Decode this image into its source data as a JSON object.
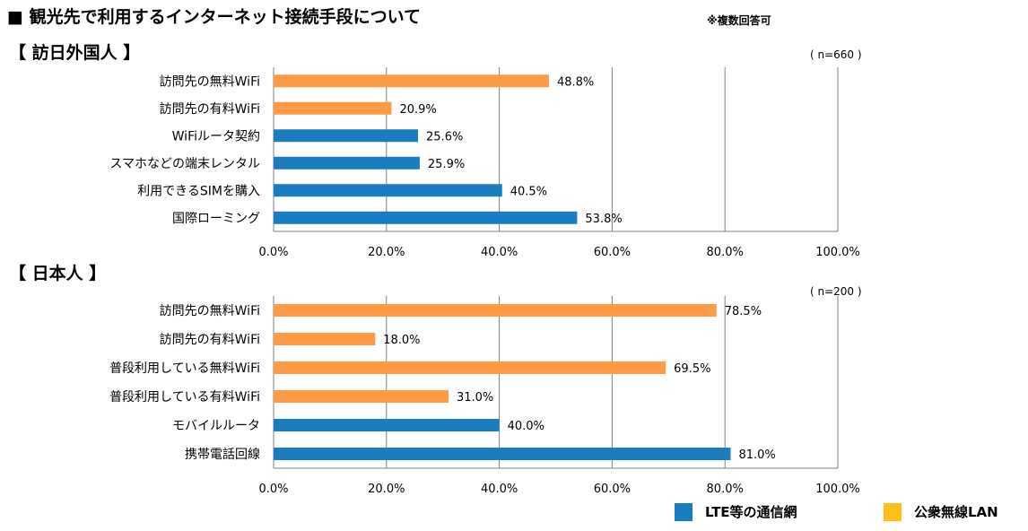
{
  "page": {
    "title": "■ 観光先で利用するインターネット接続手段について",
    "note": "※複数回答可"
  },
  "colors": {
    "lte": "#1a7dc0",
    "wifi": "#ff9a45",
    "legend_wifi": "#ffbf1a",
    "grid": "#7f7f7f",
    "axis": "#7f7f7f"
  },
  "legend": [
    {
      "label": "LTE等の通信網",
      "color": "#1a7dc0"
    },
    {
      "label": "公衆無線LAN",
      "color": "#ffbf1a"
    }
  ],
  "chart_data": [
    {
      "type": "bar",
      "orientation": "horizontal",
      "title": "【 訪日外国人 】",
      "sample": "( n=660 )",
      "xlim": [
        0,
        100
      ],
      "tick_labels": [
        "0.0%",
        "20.0%",
        "40.0%",
        "60.0%",
        "80.0%",
        "100.0%"
      ],
      "categories": [
        "訪問先の無料WiFi",
        "訪問先の有料WiFi",
        "WiFiルータ契約",
        "スマホなどの端末レンタル",
        "利用できるSIMを購入",
        "国際ローミング"
      ],
      "values": [
        48.8,
        20.9,
        25.6,
        25.9,
        40.5,
        53.8
      ],
      "value_labels": [
        "48.8%",
        "20.9%",
        "25.6%",
        "25.9%",
        "40.5%",
        "53.8%"
      ],
      "group": [
        "wifi",
        "wifi",
        "lte",
        "lte",
        "lte",
        "lte"
      ]
    },
    {
      "type": "bar",
      "orientation": "horizontal",
      "title": "【 日本人 】",
      "sample": "( n=200 )",
      "xlim": [
        0,
        100
      ],
      "tick_labels": [
        "0.0%",
        "20.0%",
        "40.0%",
        "60.0%",
        "80.0%",
        "100.0%"
      ],
      "categories": [
        "訪問先の無料WiFi",
        "訪問先の有料WiFi",
        "普段利用している無料WiFi",
        "普段利用している有料WiFi",
        "モバイルルータ",
        "携帯電話回線"
      ],
      "values": [
        78.5,
        18.0,
        69.5,
        31.0,
        40.0,
        81.0
      ],
      "value_labels": [
        "78.5%",
        "18.0%",
        "69.5%",
        "31.0%",
        "40.0%",
        "81.0%"
      ],
      "group": [
        "wifi",
        "wifi",
        "wifi",
        "wifi",
        "lte",
        "lte"
      ]
    }
  ]
}
